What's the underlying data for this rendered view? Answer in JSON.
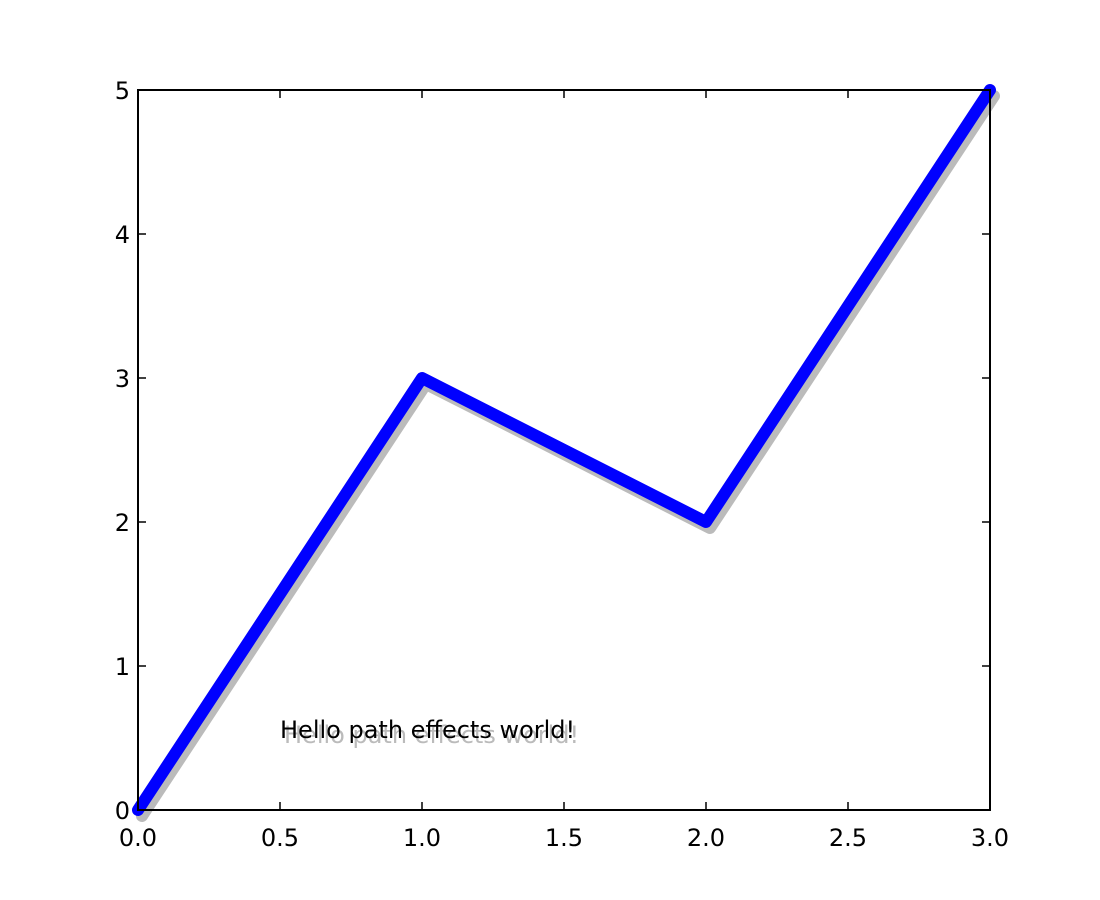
{
  "chart_data": {
    "type": "line",
    "x": [
      0,
      1,
      2,
      3
    ],
    "series": [
      {
        "color": "#0000ff",
        "values": [
          0,
          3,
          2,
          5
        ]
      }
    ],
    "xlim": [
      0,
      3
    ],
    "ylim": [
      0,
      5
    ],
    "xticks": [
      {
        "value": 0,
        "label": "0.0"
      },
      0.5,
      {
        "value": 1,
        "label": "1.0"
      },
      1.5,
      {
        "value": 2,
        "label": "2.0"
      },
      2.5,
      {
        "value": 3,
        "label": "3.0"
      }
    ],
    "yticks": [
      0,
      1,
      2,
      3,
      4,
      5
    ],
    "annotation": "Hello path effects world!",
    "shadow_color": "#bbbbbb"
  }
}
